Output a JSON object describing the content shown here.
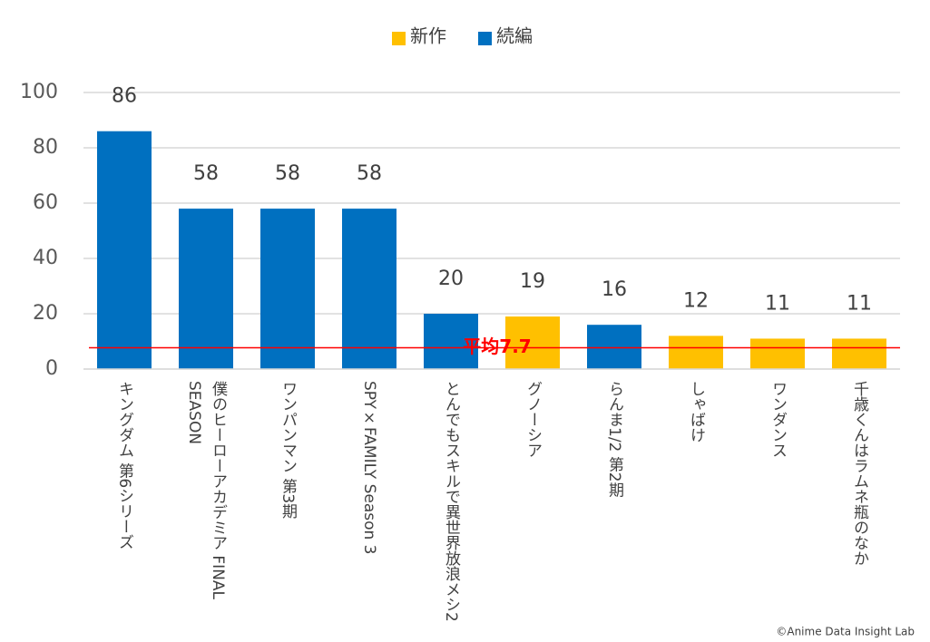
{
  "chart_data": {
    "type": "bar",
    "categories": [
      "キングダム 第6シリーズ",
      "僕のヒーローアカデミア FINAL SEASON",
      "ワンパンマン 第3期",
      "SPY×FAMILY Season 3",
      "とんでもスキルで異世界放浪メシ2",
      "グノーシア",
      "らんま1/2 第2期",
      "しゃばけ",
      "ワンダンス",
      "千歳くんはラムネ瓶のなか"
    ],
    "series": [
      {
        "name": "新作",
        "color": "#FFC000",
        "values": [
          null,
          null,
          null,
          null,
          null,
          19,
          null,
          12,
          11,
          11
        ]
      },
      {
        "name": "続編",
        "color": "#0070C0",
        "values": [
          86,
          58,
          58,
          58,
          20,
          null,
          16,
          null,
          null,
          null
        ]
      }
    ],
    "average": {
      "value": 7.7,
      "label": "平均7.7",
      "color": "#FF0000"
    },
    "ylim": [
      0,
      100
    ],
    "yticks": [
      0,
      20,
      40,
      60,
      80,
      100
    ],
    "grid": true,
    "legend": "top",
    "source": "©Anime Data Insight Lab"
  }
}
